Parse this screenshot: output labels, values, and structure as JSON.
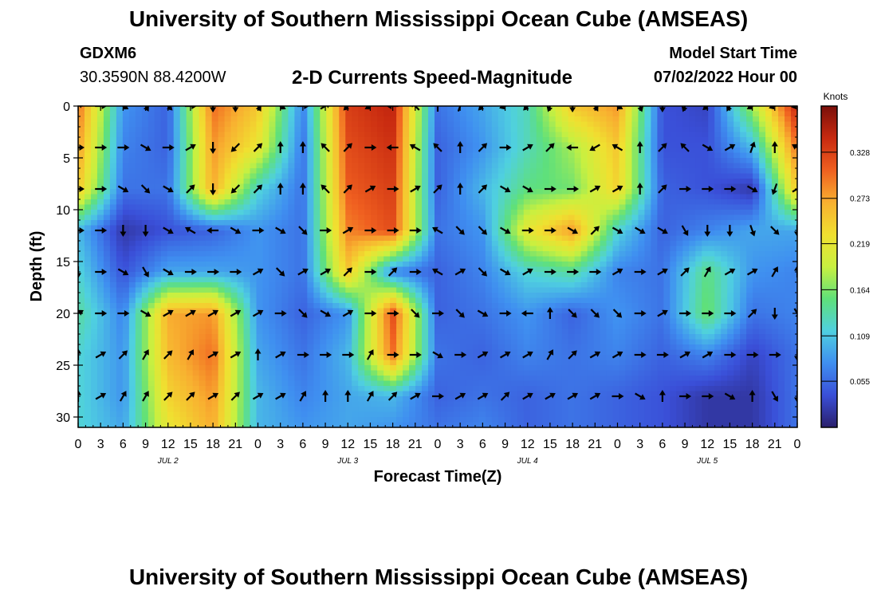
{
  "header": {
    "title": "University of Southern Mississippi Ocean Cube (AMSEAS)",
    "station": "GDXM6",
    "coords": "30.3590N  88.4200W",
    "subtitle": "2-D Currents Speed-Magnitude",
    "start_label": "Model Start Time",
    "start_value": "07/02/2022 Hour 00"
  },
  "footer": {
    "title": "University of Southern Mississippi Ocean Cube (AMSEAS)"
  },
  "colors": {
    "colormap": [
      "#2a1f6b",
      "#3a4fd8",
      "#3f8ff0",
      "#4fd0e0",
      "#5fe07a",
      "#c8f040",
      "#f0e030",
      "#f8b030",
      "#f06020",
      "#c82a10",
      "#7a0f0a"
    ],
    "arrow": "#000000"
  },
  "chart_data": {
    "type": "heatmap",
    "xlabel": "Forecast Time(Z)",
    "ylabel": "Depth (ft)",
    "xlim": [
      0,
      96
    ],
    "ylim": [
      0,
      31
    ],
    "x_ticks": [
      0,
      3,
      6,
      9,
      12,
      15,
      18,
      21,
      24,
      27,
      30,
      33,
      36,
      39,
      42,
      45,
      48,
      51,
      54,
      57,
      60,
      63,
      66,
      69,
      72,
      75,
      78,
      81,
      84,
      87,
      90,
      93,
      96
    ],
    "x_tick_labels": [
      "0",
      "3",
      "6",
      "9",
      "12",
      "15",
      "18",
      "21",
      "0",
      "3",
      "6",
      "9",
      "12",
      "15",
      "18",
      "21",
      "0",
      "3",
      "6",
      "9",
      "12",
      "15",
      "18",
      "21",
      "0",
      "3",
      "6",
      "9",
      "12",
      "15",
      "18",
      "21",
      "0"
    ],
    "day_labels": [
      {
        "label": "JUL 2",
        "x": 12
      },
      {
        "label": "JUL 3",
        "x": 36
      },
      {
        "label": "JUL 4",
        "x": 60
      },
      {
        "label": "JUL 5",
        "x": 84
      }
    ],
    "y_ticks": [
      0,
      5,
      10,
      15,
      20,
      25,
      30
    ],
    "colorbar": {
      "title": "Knots",
      "min": 0.0,
      "max": 0.383,
      "ticks": [
        0.055,
        0.109,
        0.164,
        0.219,
        0.273,
        0.328
      ]
    },
    "heatmap": {
      "times": [
        0,
        6,
        12,
        18,
        24,
        30,
        36,
        42,
        48,
        54,
        60,
        66,
        72,
        78,
        84,
        90,
        96
      ],
      "depths": [
        0,
        4,
        8,
        12,
        16,
        20,
        24,
        28,
        31
      ],
      "speed_knots": [
        [
          0.3,
          0.08,
          0.05,
          0.3,
          0.25,
          0.07,
          0.33,
          0.35,
          0.06,
          0.09,
          0.13,
          0.25,
          0.28,
          0.04,
          0.03,
          0.18,
          0.35
        ],
        [
          0.28,
          0.07,
          0.05,
          0.28,
          0.22,
          0.06,
          0.32,
          0.34,
          0.05,
          0.08,
          0.13,
          0.18,
          0.25,
          0.04,
          0.04,
          0.1,
          0.3
        ],
        [
          0.25,
          0.06,
          0.06,
          0.27,
          0.12,
          0.06,
          0.31,
          0.33,
          0.05,
          0.1,
          0.15,
          0.16,
          0.24,
          0.05,
          0.04,
          0.02,
          0.25
        ],
        [
          0.1,
          0.02,
          0.04,
          0.05,
          0.08,
          0.06,
          0.29,
          0.32,
          0.06,
          0.08,
          0.22,
          0.28,
          0.12,
          0.05,
          0.07,
          0.09,
          0.09
        ],
        [
          0.12,
          0.04,
          0.09,
          0.09,
          0.08,
          0.06,
          0.25,
          0.07,
          0.05,
          0.07,
          0.12,
          0.14,
          0.07,
          0.06,
          0.15,
          0.08,
          0.07
        ],
        [
          0.14,
          0.07,
          0.27,
          0.28,
          0.08,
          0.05,
          0.08,
          0.32,
          0.05,
          0.06,
          0.08,
          0.05,
          0.08,
          0.06,
          0.16,
          0.06,
          0.07
        ],
        [
          0.12,
          0.08,
          0.26,
          0.3,
          0.09,
          0.06,
          0.1,
          0.3,
          0.06,
          0.05,
          0.07,
          0.06,
          0.07,
          0.05,
          0.07,
          0.03,
          0.06
        ],
        [
          0.12,
          0.08,
          0.24,
          0.28,
          0.1,
          0.07,
          0.09,
          0.1,
          0.05,
          0.06,
          0.05,
          0.06,
          0.05,
          0.04,
          0.02,
          0.02,
          0.06
        ],
        [
          0.12,
          0.09,
          0.22,
          0.27,
          0.1,
          0.08,
          0.09,
          0.08,
          0.06,
          0.07,
          0.05,
          0.06,
          0.05,
          0.04,
          0.02,
          0.02,
          0.06
        ]
      ]
    },
    "vectors": {
      "times": [
        0,
        3,
        6,
        9,
        12,
        15,
        18,
        21,
        24,
        27,
        30,
        33,
        36,
        39,
        42,
        45,
        48,
        51,
        54,
        57,
        60,
        63,
        66,
        69,
        72,
        75,
        78,
        81,
        84,
        87,
        90,
        93,
        96
      ],
      "depths": [
        0,
        4,
        8,
        12,
        16,
        20,
        24,
        28
      ],
      "direction_deg": [
        [
          60,
          90,
          120,
          150,
          135,
          90,
          180,
          180,
          150,
          120,
          90,
          60,
          225,
          240,
          270,
          315,
          0,
          20,
          225,
          250,
          225,
          200,
          180,
          150,
          120,
          160,
          180,
          200,
          230,
          210,
          240,
          250,
          260
        ],
        [
          90,
          90,
          90,
          120,
          90,
          60,
          180,
          225,
          45,
          0,
          0,
          315,
          45,
          90,
          270,
          300,
          315,
          0,
          45,
          90,
          60,
          45,
          270,
          240,
          300,
          0,
          45,
          315,
          120,
          60,
          20,
          0,
          300
        ],
        [
          90,
          90,
          120,
          135,
          120,
          45,
          180,
          225,
          45,
          0,
          0,
          315,
          45,
          60,
          90,
          60,
          45,
          0,
          45,
          120,
          120,
          90,
          90,
          60,
          60,
          0,
          45,
          90,
          90,
          90,
          120,
          200,
          60
        ],
        [
          90,
          90,
          180,
          180,
          120,
          300,
          270,
          120,
          90,
          120,
          135,
          90,
          60,
          90,
          90,
          90,
          300,
          135,
          135,
          120,
          90,
          90,
          120,
          45,
          120,
          120,
          120,
          150,
          180,
          180,
          160,
          135,
          180
        ],
        [
          180,
          90,
          120,
          150,
          120,
          90,
          90,
          90,
          60,
          135,
          60,
          60,
          45,
          90,
          45,
          90,
          300,
          60,
          135,
          120,
          60,
          90,
          90,
          90,
          60,
          90,
          60,
          45,
          30,
          60,
          60,
          30,
          0
        ],
        [
          60,
          90,
          90,
          120,
          60,
          60,
          60,
          60,
          60,
          90,
          135,
          120,
          60,
          90,
          90,
          135,
          90,
          135,
          120,
          90,
          270,
          0,
          135,
          135,
          135,
          90,
          60,
          90,
          90,
          90,
          45,
          180,
          150
        ],
        [
          0,
          60,
          45,
          30,
          45,
          30,
          60,
          60,
          0,
          60,
          90,
          90,
          90,
          30,
          90,
          90,
          120,
          90,
          60,
          60,
          60,
          30,
          45,
          60,
          60,
          90,
          90,
          60,
          60,
          90,
          90,
          90,
          180
        ],
        [
          0,
          60,
          30,
          30,
          45,
          45,
          60,
          45,
          60,
          60,
          30,
          0,
          0,
          30,
          45,
          60,
          90,
          60,
          60,
          45,
          60,
          60,
          60,
          60,
          90,
          120,
          0,
          90,
          90,
          120,
          0,
          150,
          180
        ]
      ]
    }
  }
}
